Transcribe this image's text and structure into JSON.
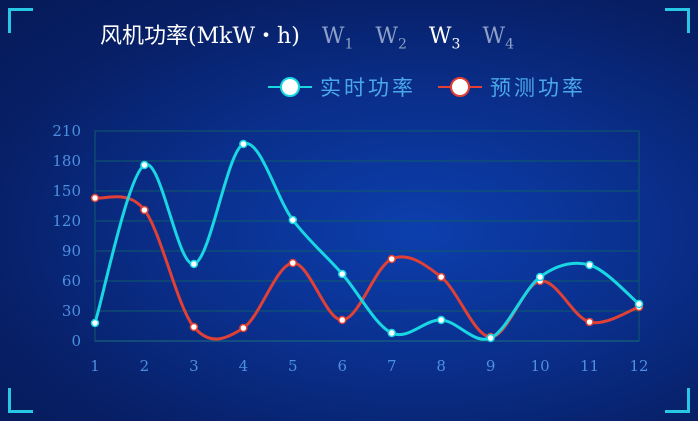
{
  "header": {
    "title": "风机功率(MkW・h)",
    "tabs": [
      {
        "label": "W",
        "sub": "1",
        "active": false
      },
      {
        "label": "W",
        "sub": "2",
        "active": false
      },
      {
        "label": "W",
        "sub": "3",
        "active": true
      },
      {
        "label": "W",
        "sub": "4",
        "active": false
      }
    ]
  },
  "colors": {
    "realtime": "#19d6e3",
    "forecast": "#e04035",
    "grid": "#0f5b6a",
    "axis": "#1b6f7a",
    "accent": "#29c7e6"
  },
  "chart_data": {
    "type": "line",
    "x": [
      "1",
      "2",
      "3",
      "4",
      "5",
      "6",
      "7",
      "8",
      "9",
      "10",
      "11",
      "12"
    ],
    "ylim": [
      0,
      210
    ],
    "yticks": [
      0,
      30,
      60,
      90,
      120,
      150,
      180,
      210
    ],
    "grid": true,
    "legend_position": "top-right",
    "series": [
      {
        "name": "实时功率",
        "values": [
          18,
          176,
          77,
          197,
          121,
          67,
          8,
          21,
          3,
          64,
          76,
          37
        ]
      },
      {
        "name": "预测功率",
        "values": [
          143,
          131,
          14,
          13,
          78,
          21,
          82,
          64,
          4,
          60,
          19,
          34
        ]
      }
    ]
  }
}
